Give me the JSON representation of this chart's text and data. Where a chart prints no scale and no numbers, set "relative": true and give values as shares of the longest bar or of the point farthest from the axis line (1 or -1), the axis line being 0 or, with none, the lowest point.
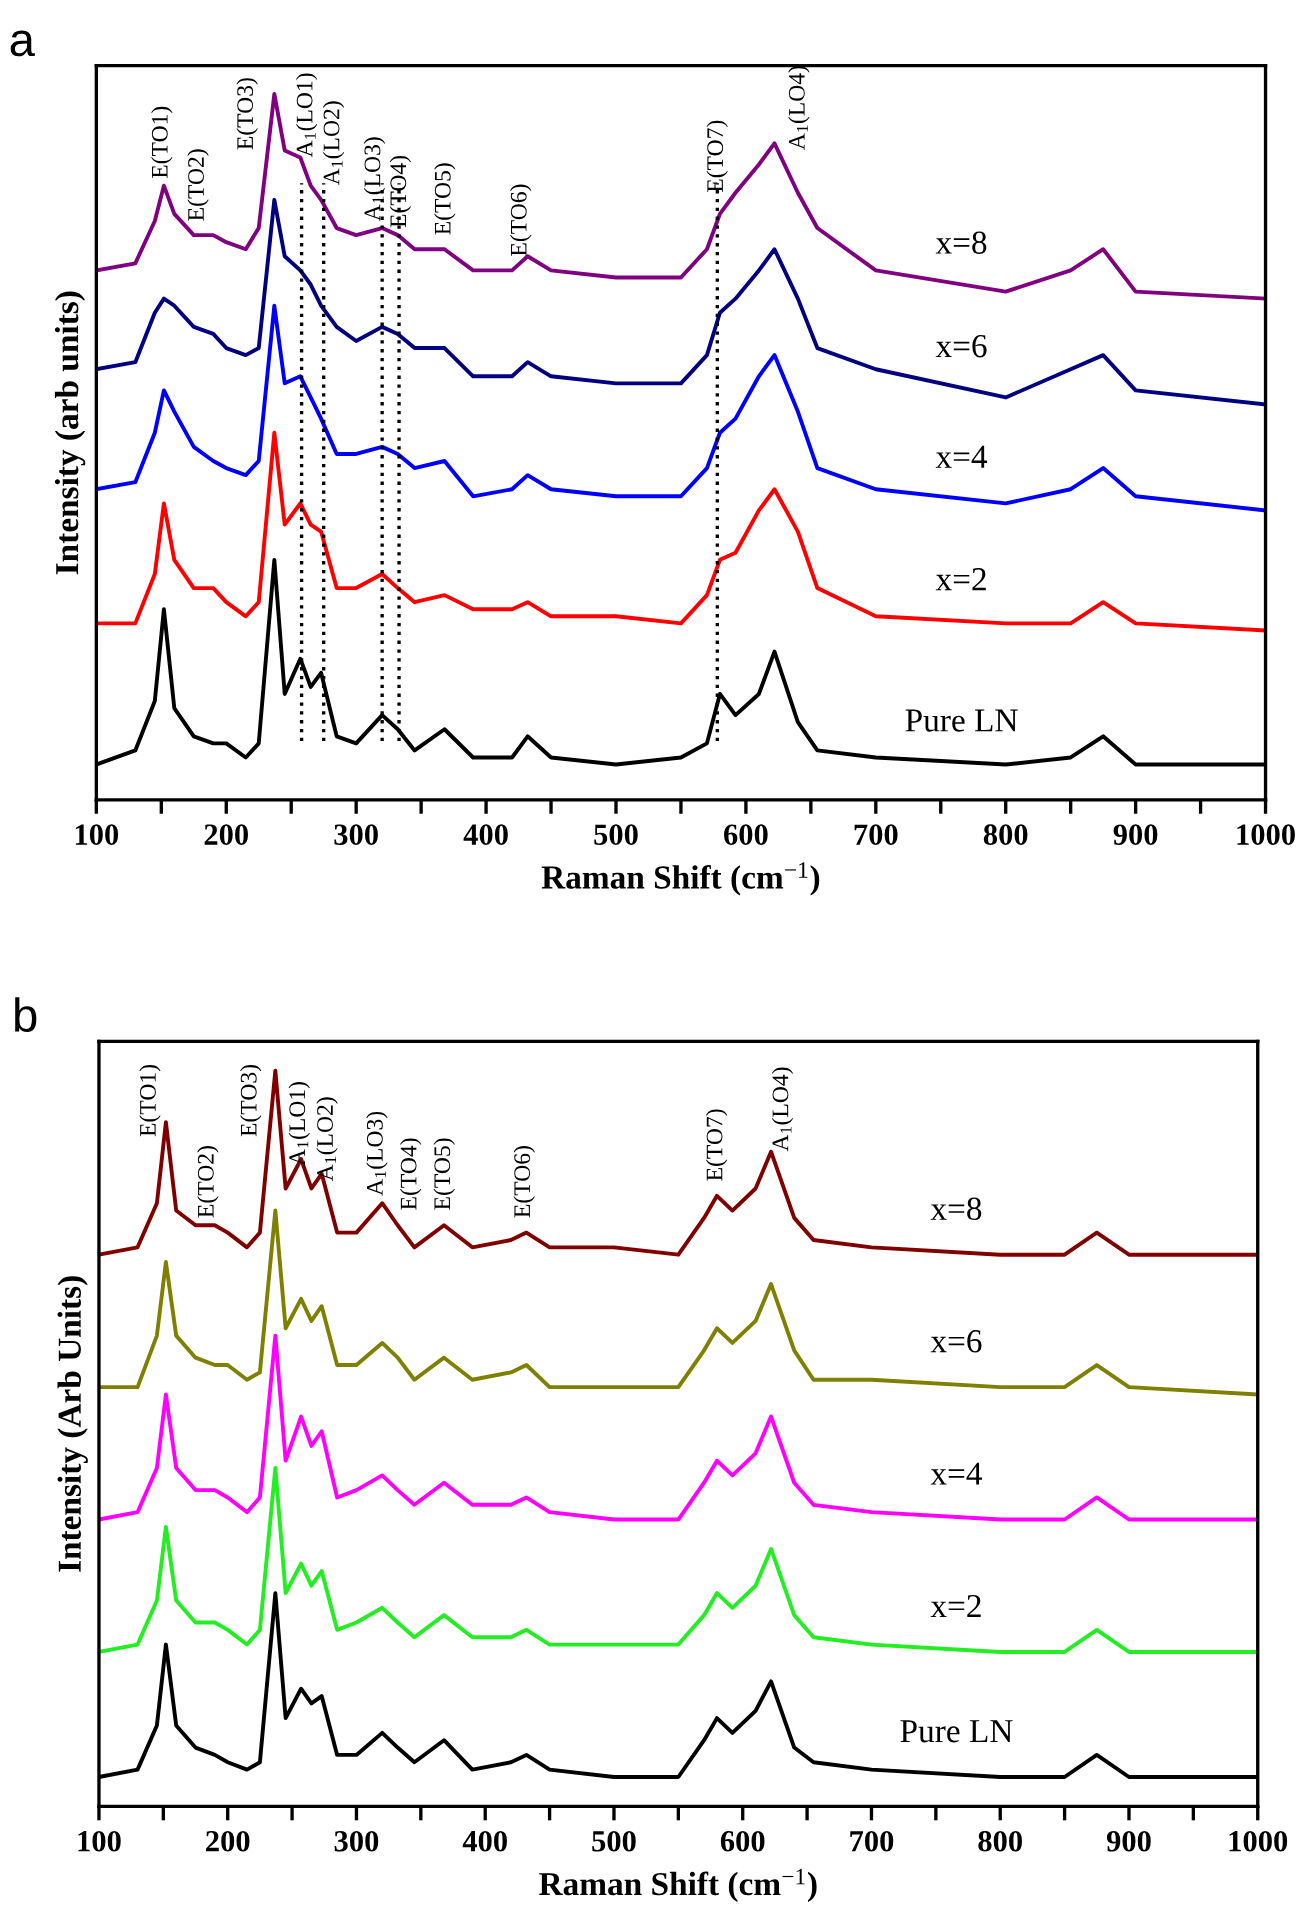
{
  "chart_data": [
    {
      "type": "line",
      "title": "a",
      "xlabel": "Raman Shift (cm$^{−1}$)",
      "ylabel": "Intensity (arb units)",
      "relative": true,
      "xlim": [
        100,
        1000
      ],
      "xticks": [
        100,
        {
          "value": 150,
          "label": null
        },
        200,
        {
          "value": 250,
          "label": null
        },
        300,
        {
          "value": 350,
          "label": null
        },
        400,
        {
          "value": 450,
          "label": null
        },
        500,
        {
          "value": 550,
          "label": null
        },
        600,
        {
          "value": 650,
          "label": null
        },
        700,
        {
          "value": 750,
          "label": null
        },
        800,
        {
          "value": 850,
          "label": null
        },
        900,
        {
          "value": 950,
          "label": null
        },
        1000
      ],
      "x": [
        100,
        130,
        145,
        152,
        160,
        175,
        190,
        200,
        215,
        225,
        237,
        245,
        257,
        265,
        273,
        285,
        300,
        320,
        332,
        345,
        368,
        390,
        420,
        432,
        450,
        500,
        550,
        570,
        580,
        592,
        610,
        622,
        640,
        655,
        700,
        800,
        850,
        875,
        900,
        1000
      ],
      "series": [
        {
          "name": "Pure LN",
          "color": "#000000",
          "values": [
            0.05,
            0.07,
            0.14,
            0.27,
            0.13,
            0.09,
            0.08,
            0.08,
            0.06,
            0.08,
            0.34,
            0.15,
            0.2,
            0.16,
            0.18,
            0.09,
            0.08,
            0.12,
            0.1,
            0.07,
            0.1,
            0.06,
            0.06,
            0.09,
            0.06,
            0.05,
            0.06,
            0.08,
            0.15,
            0.12,
            0.15,
            0.21,
            0.11,
            0.07,
            0.06,
            0.05,
            0.06,
            0.09,
            0.05,
            0.05
          ]
        },
        {
          "name": "x=2",
          "color": "#ff0000",
          "values": [
            0.25,
            0.25,
            0.32,
            0.42,
            0.34,
            0.3,
            0.3,
            0.28,
            0.26,
            0.28,
            0.52,
            0.39,
            0.42,
            0.39,
            0.38,
            0.3,
            0.3,
            0.32,
            0.3,
            0.28,
            0.29,
            0.27,
            0.27,
            0.28,
            0.26,
            0.26,
            0.25,
            0.29,
            0.34,
            0.35,
            0.41,
            0.44,
            0.38,
            0.3,
            0.26,
            0.25,
            0.25,
            0.28,
            0.25,
            0.24
          ]
        },
        {
          "name": "x=4",
          "color": "#0000ff",
          "values": [
            0.44,
            0.45,
            0.52,
            0.58,
            0.55,
            0.5,
            0.48,
            0.47,
            0.46,
            0.48,
            0.7,
            0.59,
            0.6,
            0.57,
            0.54,
            0.49,
            0.49,
            0.5,
            0.49,
            0.47,
            0.48,
            0.43,
            0.44,
            0.46,
            0.44,
            0.43,
            0.43,
            0.47,
            0.52,
            0.54,
            0.6,
            0.63,
            0.55,
            0.47,
            0.44,
            0.42,
            0.44,
            0.47,
            0.43,
            0.41
          ]
        },
        {
          "name": "x=6",
          "color": "#000080",
          "values": [
            0.61,
            0.62,
            0.69,
            0.71,
            0.7,
            0.67,
            0.66,
            0.64,
            0.63,
            0.64,
            0.85,
            0.77,
            0.75,
            0.73,
            0.7,
            0.67,
            0.65,
            0.67,
            0.66,
            0.64,
            0.64,
            0.6,
            0.6,
            0.62,
            0.6,
            0.59,
            0.59,
            0.63,
            0.69,
            0.71,
            0.75,
            0.78,
            0.71,
            0.64,
            0.61,
            0.57,
            0.61,
            0.63,
            0.58,
            0.56
          ]
        },
        {
          "name": "x=8",
          "color": "#800080",
          "values": [
            0.75,
            0.76,
            0.82,
            0.87,
            0.83,
            0.8,
            0.8,
            0.79,
            0.78,
            0.81,
            1.0,
            0.92,
            0.91,
            0.87,
            0.85,
            0.81,
            0.8,
            0.81,
            0.8,
            0.78,
            0.78,
            0.75,
            0.75,
            0.77,
            0.75,
            0.74,
            0.74,
            0.78,
            0.83,
            0.86,
            0.9,
            0.93,
            0.86,
            0.81,
            0.75,
            0.72,
            0.75,
            0.78,
            0.72,
            0.71
          ]
        }
      ],
      "ref_lines": [
        {
          "axis": "x",
          "value": 258,
          "color": "#000000",
          "line_style": "dotted"
        },
        {
          "axis": "x",
          "value": 275,
          "color": "#000000",
          "line_style": "dotted"
        },
        {
          "axis": "x",
          "value": 320,
          "color": "#000000",
          "line_style": "dotted"
        },
        {
          "axis": "x",
          "value": 333,
          "color": "#000000",
          "line_style": "dotted"
        },
        {
          "axis": "x",
          "value": 578,
          "color": "#000000",
          "line_style": "dotted"
        }
      ],
      "annotations": [
        "E(TO1)",
        "E(TO2)",
        "E(TO3)",
        "A$_{1}$(LO1)",
        "A$_{1}$(LO2)",
        "A$_{1}$(LO3)",
        "E(TO4)",
        "E(TO5)",
        "E(TO6)",
        "E(TO7)",
        "A$_{1}$(LO4)"
      ]
    },
    {
      "type": "line",
      "title": "b",
      "xlabel": "Raman Shift (cm$^{−1}$)",
      "ylabel": "Intensity (Arb Units)",
      "relative": true,
      "xlim": [
        100,
        1000
      ],
      "xticks": [
        100,
        {
          "value": 150,
          "label": null
        },
        200,
        {
          "value": 250,
          "label": null
        },
        300,
        {
          "value": 350,
          "label": null
        },
        400,
        {
          "value": 450,
          "label": null
        },
        500,
        {
          "value": 550,
          "label": null
        },
        600,
        {
          "value": 650,
          "label": null
        },
        700,
        {
          "value": 750,
          "label": null
        },
        800,
        {
          "value": 850,
          "label": null
        },
        900,
        {
          "value": 950,
          "label": null
        },
        1000
      ],
      "x": [
        100,
        130,
        145,
        152,
        160,
        175,
        190,
        200,
        215,
        225,
        237,
        245,
        257,
        265,
        273,
        285,
        300,
        320,
        332,
        345,
        368,
        390,
        420,
        432,
        450,
        500,
        550,
        570,
        580,
        592,
        610,
        622,
        640,
        655,
        700,
        800,
        850,
        875,
        900,
        1000
      ],
      "series": [
        {
          "name": "Pure LN",
          "color": "#000000",
          "values": [
            0.04,
            0.05,
            0.11,
            0.22,
            0.11,
            0.08,
            0.07,
            0.06,
            0.05,
            0.06,
            0.29,
            0.12,
            0.16,
            0.14,
            0.15,
            0.07,
            0.07,
            0.1,
            0.08,
            0.06,
            0.09,
            0.05,
            0.06,
            0.07,
            0.05,
            0.04,
            0.04,
            0.09,
            0.12,
            0.1,
            0.13,
            0.17,
            0.08,
            0.06,
            0.05,
            0.04,
            0.04,
            0.07,
            0.04,
            0.04
          ]
        },
        {
          "name": "x=2",
          "color": "#22ee22",
          "values": [
            0.21,
            0.22,
            0.28,
            0.38,
            0.28,
            0.25,
            0.25,
            0.24,
            0.22,
            0.24,
            0.46,
            0.29,
            0.33,
            0.3,
            0.32,
            0.24,
            0.25,
            0.27,
            0.25,
            0.23,
            0.26,
            0.23,
            0.23,
            0.24,
            0.22,
            0.22,
            0.22,
            0.26,
            0.29,
            0.27,
            0.3,
            0.35,
            0.26,
            0.23,
            0.22,
            0.21,
            0.21,
            0.24,
            0.21,
            0.21
          ]
        },
        {
          "name": "x=4",
          "color": "#ff00ff",
          "values": [
            0.39,
            0.4,
            0.46,
            0.56,
            0.46,
            0.43,
            0.43,
            0.42,
            0.4,
            0.42,
            0.64,
            0.47,
            0.53,
            0.49,
            0.51,
            0.42,
            0.43,
            0.45,
            0.43,
            0.41,
            0.44,
            0.41,
            0.41,
            0.42,
            0.4,
            0.39,
            0.39,
            0.44,
            0.47,
            0.45,
            0.48,
            0.53,
            0.44,
            0.41,
            0.4,
            0.39,
            0.39,
            0.42,
            0.39,
            0.39
          ]
        },
        {
          "name": "x=6",
          "color": "#808000",
          "values": [
            0.57,
            0.57,
            0.64,
            0.74,
            0.64,
            0.61,
            0.6,
            0.6,
            0.58,
            0.59,
            0.81,
            0.65,
            0.69,
            0.66,
            0.68,
            0.6,
            0.6,
            0.63,
            0.61,
            0.58,
            0.61,
            0.58,
            0.59,
            0.6,
            0.57,
            0.57,
            0.57,
            0.62,
            0.65,
            0.63,
            0.66,
            0.71,
            0.62,
            0.58,
            0.58,
            0.57,
            0.57,
            0.6,
            0.57,
            0.56
          ]
        },
        {
          "name": "x=8",
          "color": "#800000",
          "values": [
            0.75,
            0.76,
            0.82,
            0.93,
            0.81,
            0.79,
            0.79,
            0.78,
            0.76,
            0.78,
            1.0,
            0.84,
            0.88,
            0.84,
            0.86,
            0.78,
            0.78,
            0.82,
            0.79,
            0.76,
            0.79,
            0.76,
            0.77,
            0.78,
            0.76,
            0.76,
            0.75,
            0.8,
            0.83,
            0.81,
            0.84,
            0.89,
            0.8,
            0.77,
            0.76,
            0.75,
            0.75,
            0.78,
            0.75,
            0.75
          ]
        }
      ],
      "annotations": [
        "E(TO1)",
        "E(TO2)",
        "E(TO3)",
        "A$_{1}$(LO1)",
        "A$_{1}$(LO2)",
        "A$_{1}$(LO3)",
        "E(TO4)",
        "E(TO5)",
        "E(TO6)",
        "E(TO7)",
        "A$_{1}$(LO4)"
      ]
    }
  ]
}
